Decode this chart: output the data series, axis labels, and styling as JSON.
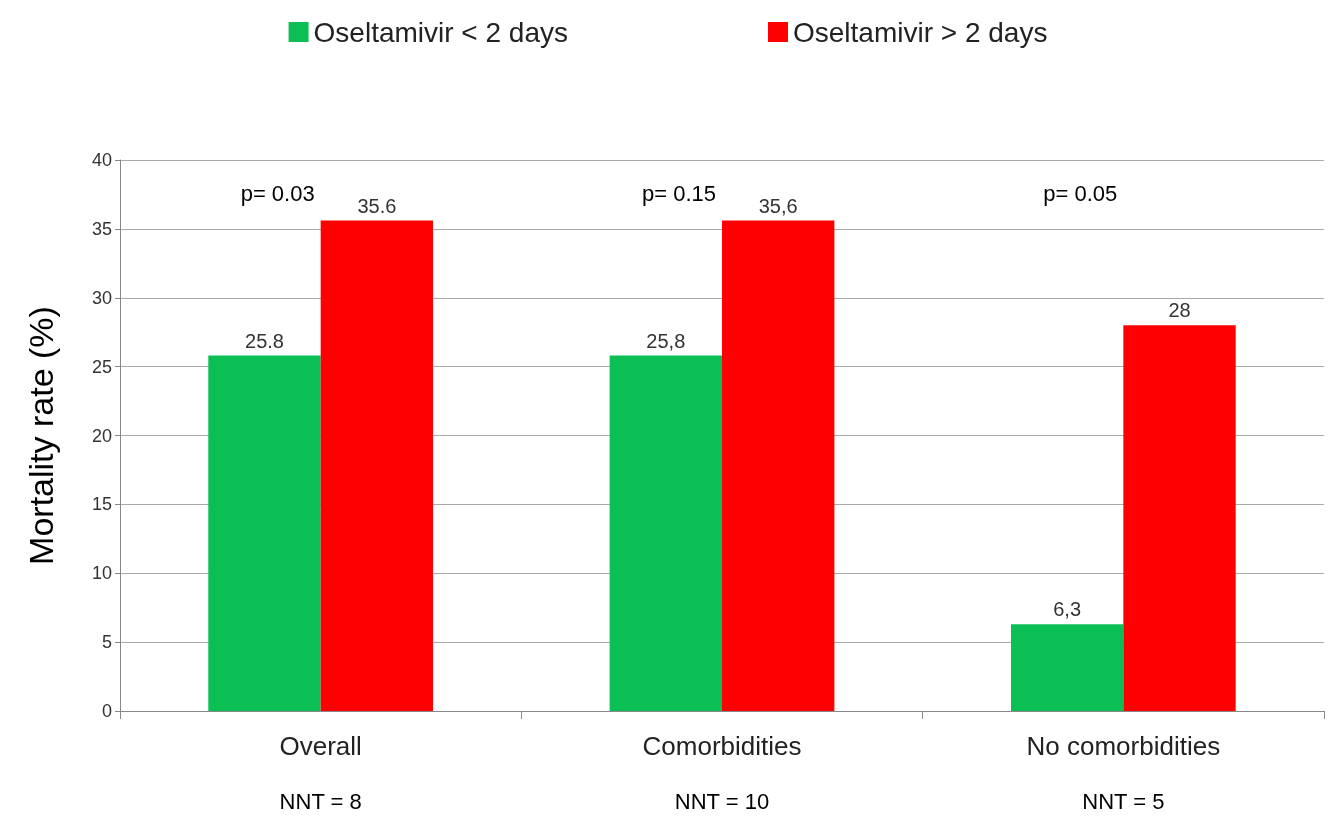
{
  "chart_data": {
    "type": "bar",
    "ylabel": "Mortality rate (%)",
    "categories": [
      "Overall",
      "Comorbidities",
      "No comorbidities"
    ],
    "series": [
      {
        "name": "Oseltamivir < 2 days",
        "color": "#0cbf55",
        "values": [
          25.8,
          25.8,
          6.3
        ],
        "value_labels": [
          "25.8",
          "25,8",
          "6,3"
        ]
      },
      {
        "name": "Oseltamivir > 2 days",
        "color": "#ff0000",
        "values": [
          35.6,
          35.6,
          28
        ],
        "value_labels": [
          "35.6",
          "35,6",
          "28"
        ]
      }
    ],
    "ylim": [
      0,
      40
    ],
    "yticks": [
      0,
      5,
      10,
      15,
      20,
      25,
      30,
      35,
      40
    ],
    "grid": "y",
    "legend": "top",
    "annotations": [
      "p= 0.03",
      "p= 0.15",
      "p= 0.05",
      "NNT = 8",
      "NNT = 10",
      "NNT = 5"
    ]
  }
}
